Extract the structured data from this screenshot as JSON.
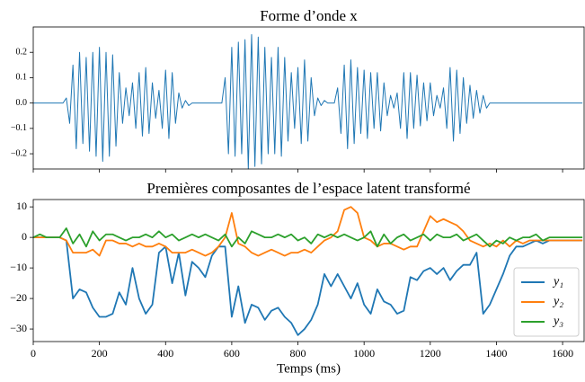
{
  "chart_data": [
    {
      "type": "line",
      "title": "Forme d’onde x",
      "color": "#1f77b4",
      "x": [
        0,
        10,
        20,
        30,
        40,
        50,
        60,
        70,
        80,
        90,
        100,
        110,
        120,
        130,
        140,
        150,
        160,
        170,
        180,
        190,
        200,
        210,
        220,
        230,
        240,
        250,
        260,
        270,
        280,
        290,
        300,
        310,
        320,
        330,
        340,
        350,
        360,
        370,
        380,
        390,
        400,
        410,
        420,
        430,
        440,
        450,
        460,
        470,
        480,
        490,
        500,
        510,
        520,
        530,
        540,
        550,
        560,
        570,
        580,
        590,
        600,
        610,
        620,
        630,
        640,
        650,
        660,
        670,
        680,
        690,
        700,
        710,
        720,
        730,
        740,
        750,
        760,
        770,
        780,
        790,
        800,
        810,
        820,
        830,
        840,
        850,
        860,
        870,
        880,
        890,
        900,
        910,
        920,
        930,
        940,
        950,
        960,
        970,
        980,
        990,
        1000,
        1010,
        1020,
        1030,
        1040,
        1050,
        1060,
        1070,
        1080,
        1090,
        1100,
        1110,
        1120,
        1130,
        1140,
        1150,
        1160,
        1170,
        1180,
        1190,
        1200,
        1210,
        1220,
        1230,
        1240,
        1250,
        1260,
        1270,
        1280,
        1290,
        1300,
        1310,
        1320,
        1330,
        1340,
        1350,
        1360,
        1370,
        1380,
        1390,
        1400,
        1410,
        1420,
        1430,
        1440,
        1450,
        1460,
        1470,
        1480,
        1490,
        1500,
        1510,
        1520,
        1530,
        1540,
        1550,
        1560,
        1570,
        1580,
        1590,
        1600,
        1610,
        1620,
        1630,
        1640,
        1650,
        1660
      ],
      "values": [
        0,
        0,
        0,
        0,
        0,
        0,
        0,
        0,
        0,
        0,
        0.02,
        -0.08,
        0.15,
        -0.18,
        0.2,
        -0.16,
        0.18,
        -0.19,
        0.2,
        -0.21,
        0.22,
        -0.23,
        0.2,
        -0.21,
        0.19,
        -0.17,
        0.12,
        -0.08,
        0.06,
        -0.05,
        0.08,
        -0.1,
        0.12,
        -0.13,
        0.14,
        -0.12,
        0.08,
        -0.06,
        0.05,
        -0.1,
        0.13,
        -0.14,
        0.12,
        -0.08,
        0.04,
        -0.02,
        0.01,
        -0.01,
        0,
        0,
        0,
        0,
        0,
        0,
        0,
        0,
        0,
        0,
        0.1,
        -0.2,
        0.22,
        -0.21,
        0.24,
        -0.2,
        0.25,
        -0.26,
        0.27,
        -0.25,
        0.26,
        -0.24,
        0.22,
        -0.2,
        0.18,
        -0.2,
        0.22,
        -0.21,
        0.18,
        -0.15,
        0.12,
        -0.1,
        0.14,
        -0.16,
        0.17,
        -0.15,
        0.1,
        -0.05,
        0.02,
        -0.01,
        0.01,
        0,
        0,
        0,
        0.06,
        -0.12,
        0.15,
        -0.18,
        0.17,
        -0.16,
        0.14,
        -0.12,
        0.13,
        -0.14,
        0.12,
        -0.1,
        0.12,
        -0.11,
        0.08,
        -0.05,
        0.03,
        -0.02,
        0.04,
        -0.1,
        0.12,
        -0.14,
        0.12,
        -0.1,
        0.11,
        -0.09,
        0.08,
        -0.07,
        0.08,
        -0.05,
        0.03,
        -0.02,
        0.06,
        -0.1,
        0.14,
        -0.15,
        0.13,
        -0.12,
        0.1,
        -0.08,
        0.07,
        -0.06,
        0.05,
        -0.04,
        0.03,
        -0.02,
        0,
        0,
        0,
        0,
        0,
        0,
        0,
        0,
        0,
        0,
        0,
        0,
        0,
        0,
        0,
        0,
        0,
        0,
        0,
        0,
        0,
        0,
        0,
        0,
        0,
        0,
        0,
        0,
        0
      ],
      "xlim": [
        0,
        1665
      ],
      "ylim": [
        -0.26,
        0.3
      ],
      "xticks": [
        0,
        200,
        400,
        600,
        800,
        1000,
        1200,
        1400,
        1600
      ],
      "yticks": [
        0.2,
        0.1,
        {
          "value": 0,
          "label": "0.0"
        },
        {
          "value": -0.1,
          "label": "−0.1"
        },
        {
          "value": -0.2,
          "label": "−0.2"
        }
      ]
    },
    {
      "type": "line",
      "title": "Premières composantes de l’espace latent transformé",
      "xlabel": "Temps (ms)",
      "legend": "lower right",
      "x": [
        0,
        20,
        40,
        60,
        80,
        100,
        120,
        140,
        160,
        180,
        200,
        220,
        240,
        260,
        280,
        300,
        320,
        340,
        360,
        380,
        400,
        420,
        440,
        460,
        480,
        500,
        520,
        540,
        560,
        580,
        600,
        620,
        640,
        660,
        680,
        700,
        720,
        740,
        760,
        780,
        800,
        820,
        840,
        860,
        880,
        900,
        920,
        940,
        960,
        980,
        1000,
        1020,
        1040,
        1060,
        1080,
        1100,
        1120,
        1140,
        1160,
        1180,
        1200,
        1220,
        1240,
        1260,
        1280,
        1300,
        1320,
        1340,
        1360,
        1380,
        1400,
        1420,
        1440,
        1460,
        1480,
        1500,
        1520,
        1540,
        1560,
        1580,
        1600,
        1620,
        1640,
        1660
      ],
      "series": [
        {
          "name": "y₁",
          "color": "#1f77b4",
          "values": [
            0,
            0,
            0,
            0,
            0,
            -1,
            -20,
            -17,
            -18,
            -23,
            -26,
            -26,
            -25,
            -18,
            -22,
            -10,
            -20,
            -25,
            -22,
            -5,
            -3,
            -15,
            -5,
            -19,
            -8,
            -10,
            -13,
            -6,
            -3,
            -3,
            -26,
            -16,
            -28,
            -22,
            -23,
            -27,
            -24,
            -23,
            -26,
            -28,
            -32,
            -30,
            -27,
            -22,
            -12,
            -16,
            -12,
            -16,
            -20,
            -15,
            -22,
            -25,
            -17,
            -21,
            -22,
            -25,
            -24,
            -13,
            -14,
            -11,
            -10,
            -12,
            -10,
            -14,
            -11,
            -9,
            -9,
            -5,
            -25,
            -22,
            -17,
            -12,
            -6,
            -3,
            -3,
            -2,
            -1,
            -2,
            -1,
            -1,
            -1,
            -1,
            -1,
            -1
          ]
        },
        {
          "name": "y₂",
          "color": "#ff7f0e",
          "values": [
            0,
            0,
            0,
            0,
            0,
            -1,
            -5,
            -5,
            -5,
            -4,
            -6,
            -1,
            -1,
            -2,
            -2,
            -3,
            -2,
            -3,
            -3,
            -2,
            -3,
            -5,
            -5,
            -5,
            -4,
            -5,
            -6,
            -5,
            -3,
            0,
            8,
            -2,
            -3,
            -5,
            -6,
            -5,
            -4,
            -5,
            -6,
            -5,
            -5,
            -4,
            -5,
            -3,
            -1,
            0,
            2,
            9,
            10,
            8,
            0,
            -1,
            -3,
            -2,
            -2,
            -3,
            -4,
            -3,
            -3,
            2,
            7,
            5,
            6,
            5,
            4,
            2,
            -1,
            -2,
            -3,
            -2,
            -3,
            -1,
            -3,
            -1,
            -2,
            -1,
            -1,
            -1,
            -1,
            -1,
            -1,
            -1,
            -1,
            -1
          ]
        },
        {
          "name": "y₃",
          "color": "#2ca02c",
          "values": [
            0,
            1,
            0,
            0,
            0,
            3,
            -2,
            1,
            -3,
            2,
            -1,
            1,
            1,
            0,
            -1,
            0,
            0,
            1,
            0,
            2,
            0,
            1,
            -1,
            0,
            1,
            0,
            1,
            0,
            -1,
            1,
            -3,
            0,
            -2,
            2,
            1,
            0,
            0,
            1,
            0,
            1,
            -1,
            0,
            -2,
            1,
            0,
            1,
            0,
            1,
            0,
            -1,
            0,
            2,
            -3,
            1,
            -2,
            0,
            1,
            -1,
            0,
            1,
            -1,
            1,
            0,
            0,
            1,
            -1,
            0,
            1,
            -1,
            -3,
            -1,
            -2,
            0,
            -1,
            0,
            0,
            1,
            -1,
            0,
            0,
            0,
            0,
            0,
            0
          ]
        }
      ],
      "xlim": [
        0,
        1665
      ],
      "ylim": [
        -34.1,
        12.4
      ],
      "xticks": [
        0,
        200,
        400,
        600,
        800,
        1000,
        1200,
        1400,
        1600
      ],
      "yticks": [
        10,
        0,
        {
          "value": -10,
          "label": "−10"
        },
        {
          "value": -20,
          "label": "−20"
        },
        {
          "value": -30,
          "label": "−30"
        }
      ]
    }
  ]
}
